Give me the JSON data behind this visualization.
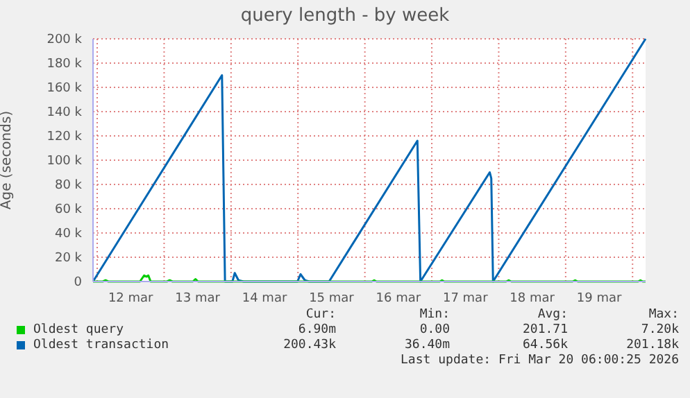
{
  "chart_data": {
    "type": "line",
    "title": "query length - by week",
    "ylabel": "Age (seconds)",
    "xlim": [
      "2026-03-11T22:30",
      "2026-03-20T04:40"
    ],
    "xticks": [
      {
        "value": "2026-03-12T00:00",
        "label": null
      },
      {
        "value": "2026-03-12T12:00",
        "label": "12 mar"
      },
      {
        "value": "2026-03-13T00:00",
        "label": null
      },
      {
        "value": "2026-03-13T12:00",
        "label": "13 mar"
      },
      {
        "value": "2026-03-14T00:00",
        "label": null
      },
      {
        "value": "2026-03-14T12:00",
        "label": "14 mar"
      },
      {
        "value": "2026-03-15T00:00",
        "label": null
      },
      {
        "value": "2026-03-15T12:00",
        "label": "15 mar"
      },
      {
        "value": "2026-03-16T00:00",
        "label": null
      },
      {
        "value": "2026-03-16T12:00",
        "label": "16 mar"
      },
      {
        "value": "2026-03-17T00:00",
        "label": null
      },
      {
        "value": "2026-03-17T12:00",
        "label": "17 mar"
      },
      {
        "value": "2026-03-18T00:00",
        "label": null
      },
      {
        "value": "2026-03-18T12:00",
        "label": "18 mar"
      },
      {
        "value": "2026-03-19T00:00",
        "label": null
      },
      {
        "value": "2026-03-19T12:00",
        "label": "19 mar"
      },
      {
        "value": "2026-03-20T00:00",
        "label": null
      }
    ],
    "ylim": [
      0,
      200000
    ],
    "yticks": [
      0,
      {
        "value": 20000,
        "label": "20 k"
      },
      {
        "value": 40000,
        "label": "40 k"
      },
      {
        "value": 60000,
        "label": "60 k"
      },
      {
        "value": 80000,
        "label": "80 k"
      },
      {
        "value": 100000,
        "label": "100 k"
      },
      {
        "value": 120000,
        "label": "120 k"
      },
      {
        "value": 140000,
        "label": "140 k"
      },
      {
        "value": 160000,
        "label": "160 k"
      },
      {
        "value": 180000,
        "label": "180 k"
      },
      {
        "value": 200000,
        "label": "200 k"
      }
    ],
    "grid": true,
    "legend": "bottom",
    "series": [
      {
        "name": "Oldest query",
        "color": "#00cc00",
        "x": [
          "2026-03-11T22:30",
          "2026-03-12T02:00",
          "2026-03-12T03:00",
          "2026-03-12T04:00",
          "2026-03-12T15:20",
          "2026-03-12T16:50",
          "2026-03-12T17:40",
          "2026-03-12T18:20",
          "2026-03-12T19:10",
          "2026-03-13T01:00",
          "2026-03-13T02:00",
          "2026-03-13T03:00",
          "2026-03-13T10:20",
          "2026-03-13T11:15",
          "2026-03-13T12:10",
          "2026-03-16T02:30",
          "2026-03-16T03:20",
          "2026-03-16T04:10",
          "2026-03-17T02:50",
          "2026-03-17T03:40",
          "2026-03-17T04:30",
          "2026-03-18T02:40",
          "2026-03-18T03:35",
          "2026-03-18T04:30",
          "2026-03-19T02:30",
          "2026-03-19T03:25",
          "2026-03-19T04:20",
          "2026-03-20T02:00",
          "2026-03-20T02:50",
          "2026-03-20T03:40",
          "2026-03-20T04:40"
        ],
        "values": [
          0,
          0,
          1000,
          0,
          0,
          5000,
          4000,
          5000,
          0,
          0,
          1000,
          0,
          0,
          2000,
          0,
          0,
          1000,
          0,
          0,
          1000,
          0,
          0,
          1000,
          0,
          0,
          1000,
          0,
          0,
          1000,
          0,
          0
        ]
      },
      {
        "name": "Oldest transaction",
        "color": "#0066b3",
        "x": [
          "2026-03-11T22:30",
          "2026-03-13T20:45",
          "2026-03-13T21:50",
          "2026-03-14T00:30",
          "2026-03-14T01:20",
          "2026-03-14T02:40",
          "2026-03-14T04:30",
          "2026-03-14T23:50",
          "2026-03-15T00:55",
          "2026-03-15T02:30",
          "2026-03-15T04:00",
          "2026-03-15T11:10",
          "2026-03-16T18:50",
          "2026-03-16T19:55",
          "2026-03-17T20:47",
          "2026-03-17T21:20",
          "2026-03-17T21:58",
          "2026-03-20T04:40"
        ],
        "values": [
          0,
          170000,
          0,
          0,
          7000,
          1000,
          0,
          0,
          6000,
          1000,
          0,
          0,
          116000,
          0,
          90000,
          85000,
          0,
          200000
        ]
      }
    ],
    "annotations": [
      "Cur:",
      "Min:",
      "Avg:",
      "Max:",
      "6.90m",
      "0.00",
      "201.71",
      "7.20k",
      "200.43k",
      "36.40m",
      "64.56k",
      "201.18k",
      "Last update: Fri Mar 20 06:00:25 2026"
    ]
  }
}
